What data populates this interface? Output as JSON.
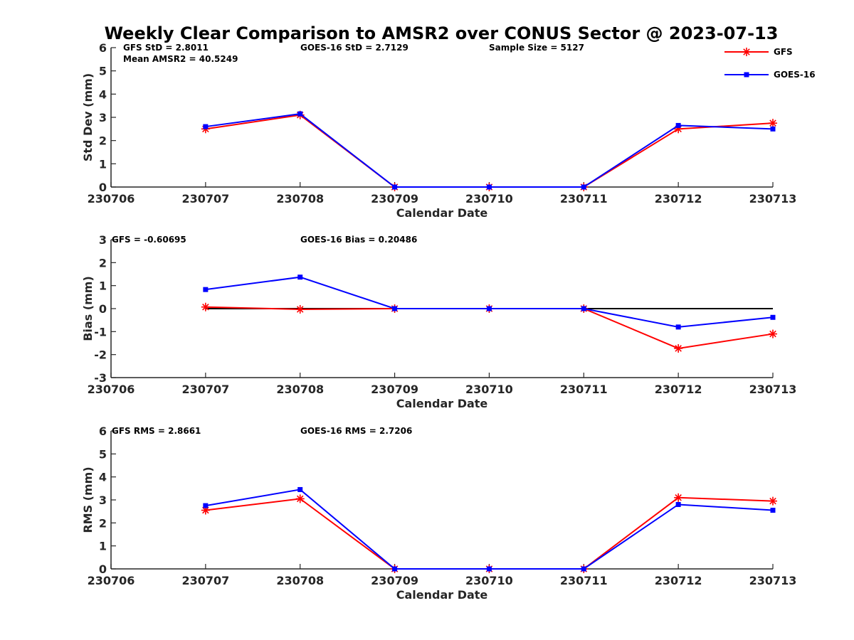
{
  "chart_data": {
    "type": "line",
    "title": "Weekly Clear Comparison to AMSR2 over CONUS Sector @ 2023-07-13",
    "legend": {
      "placement": "top-right",
      "entries": [
        {
          "name": "GFS",
          "color": "#ff0000",
          "marker": "asterisk"
        },
        {
          "name": "GOES-16",
          "color": "#0000ff",
          "marker": "square"
        }
      ]
    },
    "panels": [
      {
        "id": "std",
        "ylabel": "Std Dev (mm)",
        "xlabel": "Calendar Date",
        "ylim": [
          0,
          6
        ],
        "yticks": [
          "0",
          "1",
          "2",
          "3",
          "4",
          "5",
          "6"
        ],
        "xticks": [
          "230706",
          "230707",
          "230708",
          "230709",
          "230710",
          "230711",
          "230712",
          "230713"
        ],
        "stats": [
          "GFS StD = 2.8011",
          "Mean AMSR2 = 40.5249",
          "GOES-16 StD = 2.7129",
          "Sample Size = 5127"
        ],
        "zero_line": false,
        "series": [
          {
            "name": "GFS",
            "color": "#ff0000",
            "marker": "asterisk",
            "x": [
              "230707",
              "230708",
              "230709",
              "230710",
              "230711",
              "230712",
              "230713"
            ],
            "values": [
              2.5,
              3.1,
              0,
              0,
              0,
              2.5,
              2.75
            ]
          },
          {
            "name": "GOES-16",
            "color": "#0000ff",
            "marker": "square",
            "x": [
              "230707",
              "230708",
              "230709",
              "230710",
              "230711",
              "230712",
              "230713"
            ],
            "values": [
              2.6,
              3.15,
              0,
              0,
              0,
              2.65,
              2.5
            ]
          }
        ]
      },
      {
        "id": "bias",
        "ylabel": "Bias (mm)",
        "xlabel": "Calendar Date",
        "ylim": [
          -3,
          3
        ],
        "yticks": [
          "-3",
          "-2",
          "-1",
          "0",
          "1",
          "2",
          "3"
        ],
        "xticks": [
          "230706",
          "230707",
          "230708",
          "230709",
          "230710",
          "230711",
          "230712",
          "230713"
        ],
        "stats": [
          "GFS = -0.60695",
          "GOES-16 Bias  = 0.20486"
        ],
        "zero_line": true,
        "series": [
          {
            "name": "GFS",
            "color": "#ff0000",
            "marker": "asterisk",
            "x": [
              "230707",
              "230708",
              "230709",
              "230710",
              "230711",
              "230712",
              "230713"
            ],
            "values": [
              0.07,
              -0.03,
              0,
              0,
              0,
              -1.73,
              -1.1
            ]
          },
          {
            "name": "GOES-16",
            "color": "#0000ff",
            "marker": "square",
            "x": [
              "230707",
              "230708",
              "230709",
              "230710",
              "230711",
              "230712",
              "230713"
            ],
            "values": [
              0.83,
              1.37,
              0,
              0,
              0,
              -0.8,
              -0.38
            ]
          }
        ]
      },
      {
        "id": "rms",
        "ylabel": "RMS (mm)",
        "xlabel": "Calendar Date",
        "ylim": [
          0,
          6
        ],
        "yticks": [
          "0",
          "1",
          "2",
          "3",
          "4",
          "5",
          "6"
        ],
        "xticks": [
          "230706",
          "230707",
          "230708",
          "230709",
          "230710",
          "230711",
          "230712",
          "230713"
        ],
        "stats": [
          "GFS RMS = 2.8661",
          "GOES-16 RMS = 2.7206"
        ],
        "zero_line": false,
        "series": [
          {
            "name": "GFS",
            "color": "#ff0000",
            "marker": "asterisk",
            "x": [
              "230707",
              "230708",
              "230709",
              "230710",
              "230711",
              "230712",
              "230713"
            ],
            "values": [
              2.55,
              3.05,
              0,
              0,
              0,
              3.1,
              2.95
            ]
          },
          {
            "name": "GOES-16",
            "color": "#0000ff",
            "marker": "square",
            "x": [
              "230707",
              "230708",
              "230709",
              "230710",
              "230711",
              "230712",
              "230713"
            ],
            "values": [
              2.75,
              3.45,
              0,
              0,
              0,
              2.8,
              2.55
            ]
          }
        ]
      }
    ]
  }
}
